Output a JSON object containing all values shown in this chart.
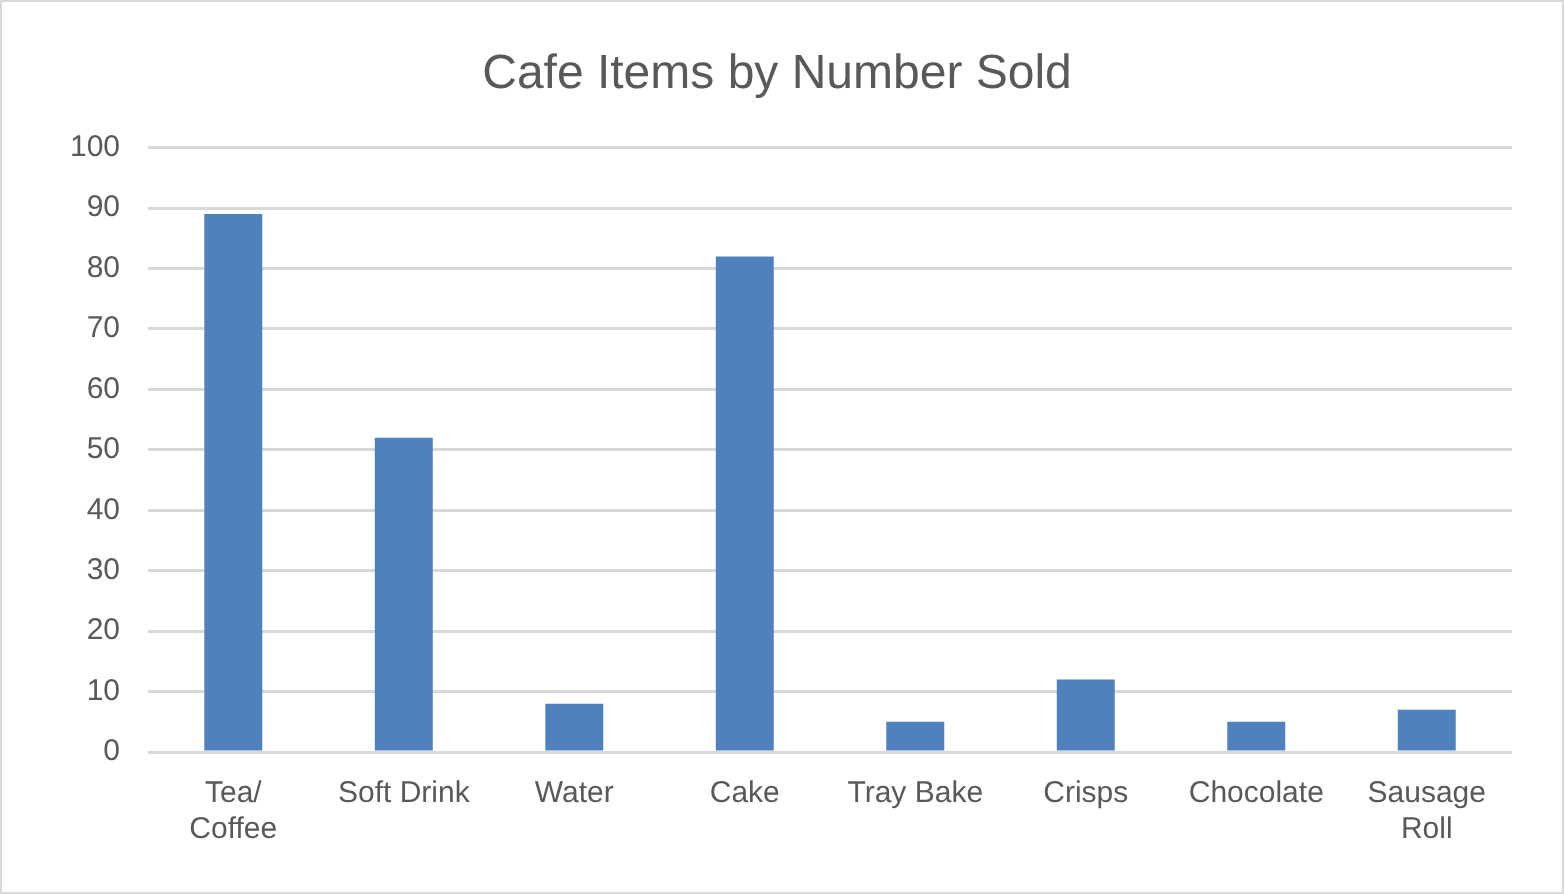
{
  "chart_data": {
    "type": "bar",
    "title": "Cafe Items by Number Sold",
    "categories": [
      "Tea/ Coffee",
      "Soft Drink",
      "Water",
      "Cake",
      "Tray Bake",
      "Crisps",
      "Chocolate",
      "Sausage Roll"
    ],
    "values": [
      89,
      52,
      8,
      82,
      5,
      12,
      5,
      7
    ],
    "color": "#4f81bd",
    "ylim": [
      0,
      100
    ],
    "yticks": [
      0,
      10,
      20,
      30,
      40,
      50,
      60,
      70,
      80,
      90,
      100
    ],
    "grid": "y",
    "legend": false
  }
}
